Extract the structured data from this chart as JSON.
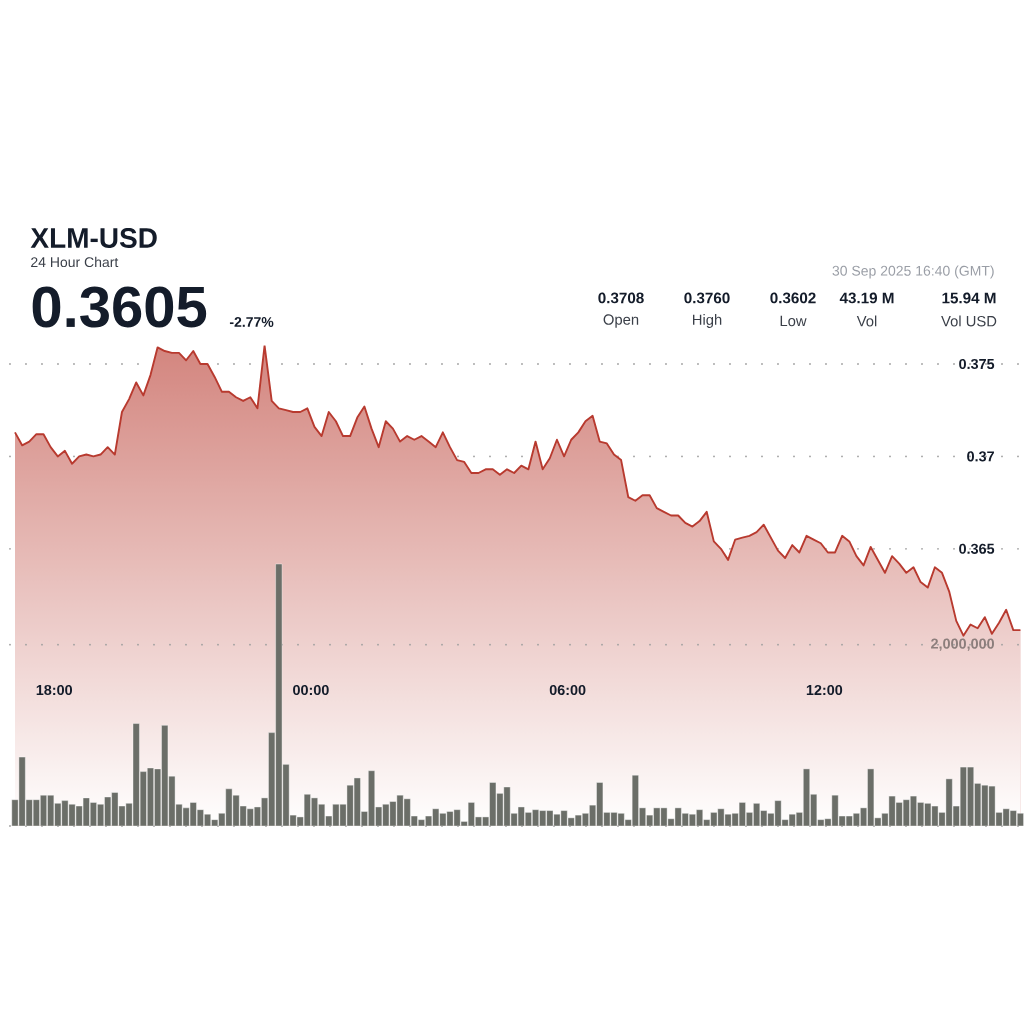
{
  "chart_data": {
    "type": "area",
    "title": "XLM-USD",
    "subtitle": "24 Hour Chart",
    "annotations": [
      "0.3605",
      "-2.77%",
      "30 Sep 2025 16:40 (GMT)",
      "0.3708",
      "Open",
      "0.3760",
      "High",
      "0.3602",
      "Low",
      "43.19 M",
      "Vol",
      "15.94 M",
      "Vol USD"
    ],
    "x": [
      "2025-09-29T17:05",
      "2025-09-29T17:15",
      "2025-09-29T17:25",
      "2025-09-29T17:35",
      "2025-09-29T17:45",
      "2025-09-29T17:55",
      "2025-09-29T18:05",
      "2025-09-29T18:15",
      "2025-09-29T18:25",
      "2025-09-29T18:35",
      "2025-09-29T18:45",
      "2025-09-29T18:55",
      "2025-09-29T19:05",
      "2025-09-29T19:15",
      "2025-09-29T19:25",
      "2025-09-29T19:35",
      "2025-09-29T19:45",
      "2025-09-29T19:55",
      "2025-09-29T20:05",
      "2025-09-29T20:15",
      "2025-09-29T20:25",
      "2025-09-29T20:35",
      "2025-09-29T20:45",
      "2025-09-29T20:55",
      "2025-09-29T21:05",
      "2025-09-29T21:15",
      "2025-09-29T21:25",
      "2025-09-29T21:35",
      "2025-09-29T21:45",
      "2025-09-29T21:55",
      "2025-09-29T22:05",
      "2025-09-29T22:15",
      "2025-09-29T22:25",
      "2025-09-29T22:35",
      "2025-09-29T22:45",
      "2025-09-29T22:55",
      "2025-09-29T23:05",
      "2025-09-29T23:15",
      "2025-09-29T23:25",
      "2025-09-29T23:35",
      "2025-09-29T23:45",
      "2025-09-29T23:55",
      "2025-09-30T00:05",
      "2025-09-30T00:15",
      "2025-09-30T00:25",
      "2025-09-30T00:35",
      "2025-09-30T00:45",
      "2025-09-30T00:55",
      "2025-09-30T01:05",
      "2025-09-30T01:15",
      "2025-09-30T01:25",
      "2025-09-30T01:35",
      "2025-09-30T01:45",
      "2025-09-30T01:55",
      "2025-09-30T02:05",
      "2025-09-30T02:15",
      "2025-09-30T02:25",
      "2025-09-30T02:35",
      "2025-09-30T02:45",
      "2025-09-30T02:55",
      "2025-09-30T03:05",
      "2025-09-30T03:15",
      "2025-09-30T03:25",
      "2025-09-30T03:35",
      "2025-09-30T03:45",
      "2025-09-30T03:55",
      "2025-09-30T04:05",
      "2025-09-30T04:15",
      "2025-09-30T04:25",
      "2025-09-30T04:35",
      "2025-09-30T04:45",
      "2025-09-30T04:55",
      "2025-09-30T05:05",
      "2025-09-30T05:15",
      "2025-09-30T05:25",
      "2025-09-30T05:35",
      "2025-09-30T05:45",
      "2025-09-30T05:55",
      "2025-09-30T06:05",
      "2025-09-30T06:15",
      "2025-09-30T06:25",
      "2025-09-30T06:35",
      "2025-09-30T06:45",
      "2025-09-30T06:55",
      "2025-09-30T07:05",
      "2025-09-30T07:15",
      "2025-09-30T07:25",
      "2025-09-30T07:35",
      "2025-09-30T07:45",
      "2025-09-30T07:55",
      "2025-09-30T08:05",
      "2025-09-30T08:15",
      "2025-09-30T08:25",
      "2025-09-30T08:35",
      "2025-09-30T08:45",
      "2025-09-30T08:55",
      "2025-09-30T09:05",
      "2025-09-30T09:15",
      "2025-09-30T09:25",
      "2025-09-30T09:35",
      "2025-09-30T09:45",
      "2025-09-30T09:55",
      "2025-09-30T10:05",
      "2025-09-30T10:15",
      "2025-09-30T10:25",
      "2025-09-30T10:35",
      "2025-09-30T10:45",
      "2025-09-30T10:55",
      "2025-09-30T11:05",
      "2025-09-30T11:15",
      "2025-09-30T11:25",
      "2025-09-30T11:35",
      "2025-09-30T11:45",
      "2025-09-30T11:55",
      "2025-09-30T12:05",
      "2025-09-30T12:15",
      "2025-09-30T12:25",
      "2025-09-30T12:35",
      "2025-09-30T12:45",
      "2025-09-30T12:55",
      "2025-09-30T13:05",
      "2025-09-30T13:15",
      "2025-09-30T13:25",
      "2025-09-30T13:35",
      "2025-09-30T13:45",
      "2025-09-30T13:55",
      "2025-09-30T14:05",
      "2025-09-30T14:15",
      "2025-09-30T14:25",
      "2025-09-30T14:35",
      "2025-09-30T14:45",
      "2025-09-30T14:55",
      "2025-09-30T15:05",
      "2025-09-30T15:15",
      "2025-09-30T15:25",
      "2025-09-30T15:35",
      "2025-09-30T15:45",
      "2025-09-30T15:55",
      "2025-09-30T16:05",
      "2025-09-30T16:15",
      "2025-09-30T16:25",
      "2025-09-30T16:35"
    ],
    "xlim": [
      "2025-09-29T16:58",
      "2025-09-30T16:40"
    ],
    "xticks": [
      {
        "value": "2025-09-29T18:00",
        "label": "18:00"
      },
      {
        "value": "2025-09-30T00:00",
        "label": "00:00"
      },
      {
        "value": "2025-09-30T06:00",
        "label": "06:00"
      },
      {
        "value": "2025-09-30T12:00",
        "label": "12:00"
      }
    ],
    "ylim": [
      0.35,
      0.376
    ],
    "yticks": [
      0.365,
      0.37,
      0.375
    ],
    "y2lim": [
      0,
      5300000
    ],
    "y2ticks": [
      {
        "value": 0,
        "label": null
      },
      {
        "value": 2000000,
        "label": "2,000,000"
      }
    ],
    "grid": "y",
    "series": [
      {
        "color": "#b83a2f",
        "values": [
          0.3713,
          0.3706,
          0.3708,
          0.3712,
          0.3712,
          0.3705,
          0.37,
          0.3703,
          0.3696,
          0.37,
          0.3701,
          0.37,
          0.3701,
          0.3705,
          0.3701,
          0.3724,
          0.3731,
          0.374,
          0.3733,
          0.3744,
          0.3759,
          0.3757,
          0.3756,
          0.3756,
          0.3752,
          0.3757,
          0.375,
          0.375,
          0.3743,
          0.3735,
          0.3735,
          0.3732,
          0.373,
          0.3732,
          0.3726,
          0.376,
          0.373,
          0.3726,
          0.3725,
          0.3724,
          0.3724,
          0.3726,
          0.3716,
          0.3711,
          0.3724,
          0.3719,
          0.3711,
          0.3711,
          0.3721,
          0.3727,
          0.3715,
          0.3705,
          0.3719,
          0.3715,
          0.3708,
          0.3711,
          0.3709,
          0.3711,
          0.3708,
          0.3705,
          0.3713,
          0.3705,
          0.3698,
          0.3697,
          0.3691,
          0.3691,
          0.3693,
          0.3693,
          0.369,
          0.3693,
          0.3691,
          0.3695,
          0.3693,
          0.3708,
          0.3693,
          0.3699,
          0.3709,
          0.37,
          0.3709,
          0.3713,
          0.3719,
          0.3722,
          0.3708,
          0.3707,
          0.3701,
          0.3698,
          0.3678,
          0.3676,
          0.3679,
          0.3679,
          0.3672,
          0.367,
          0.3668,
          0.3668,
          0.3664,
          0.3662,
          0.3665,
          0.367,
          0.3654,
          0.365,
          0.3644,
          0.3655,
          0.3656,
          0.3657,
          0.3659,
          0.3663,
          0.3656,
          0.3649,
          0.3645,
          0.3652,
          0.3648,
          0.3657,
          0.3655,
          0.3653,
          0.3648,
          0.3648,
          0.3657,
          0.3654,
          0.3646,
          0.3641,
          0.3651,
          0.3644,
          0.3637,
          0.3646,
          0.3642,
          0.3637,
          0.364,
          0.3632,
          0.3629,
          0.364,
          0.3637,
          0.3627,
          0.3611,
          0.3603,
          0.3609,
          0.3607,
          0.3613,
          0.3604,
          0.361,
          0.3617,
          0.3606,
          0.3606
        ]
      },
      {
        "type": "bar",
        "axis": "y2",
        "color": "#6b6e68",
        "values": [
          290000,
          760000,
          290000,
          290000,
          340000,
          340000,
          250000,
          280000,
          240000,
          220000,
          310000,
          260000,
          240000,
          320000,
          370000,
          220000,
          250000,
          1130000,
          600000,
          640000,
          630000,
          1110000,
          550000,
          240000,
          200000,
          260000,
          180000,
          130000,
          70000,
          140000,
          410000,
          340000,
          220000,
          190000,
          210000,
          310000,
          1030000,
          2890000,
          680000,
          120000,
          100000,
          350000,
          310000,
          240000,
          110000,
          240000,
          240000,
          450000,
          530000,
          160000,
          610000,
          210000,
          240000,
          270000,
          340000,
          300000,
          110000,
          70000,
          110000,
          190000,
          140000,
          160000,
          180000,
          50000,
          260000,
          100000,
          100000,
          480000,
          360000,
          430000,
          140000,
          210000,
          150000,
          180000,
          170000,
          170000,
          130000,
          170000,
          90000,
          120000,
          140000,
          230000,
          480000,
          150000,
          150000,
          140000,
          70000,
          560000,
          200000,
          120000,
          200000,
          200000,
          80000,
          200000,
          140000,
          130000,
          180000,
          70000,
          150000,
          190000,
          130000,
          140000,
          260000,
          150000,
          250000,
          170000,
          140000,
          280000,
          70000,
          130000,
          150000,
          630000,
          350000,
          70000,
          80000,
          340000,
          110000,
          110000,
          140000,
          200000,
          630000,
          90000,
          140000,
          330000,
          260000,
          290000,
          330000,
          260000,
          250000,
          220000,
          150000,
          520000,
          220000,
          650000,
          650000,
          470000,
          450000,
          440000,
          150000,
          190000,
          170000,
          140000
        ]
      }
    ]
  }
}
